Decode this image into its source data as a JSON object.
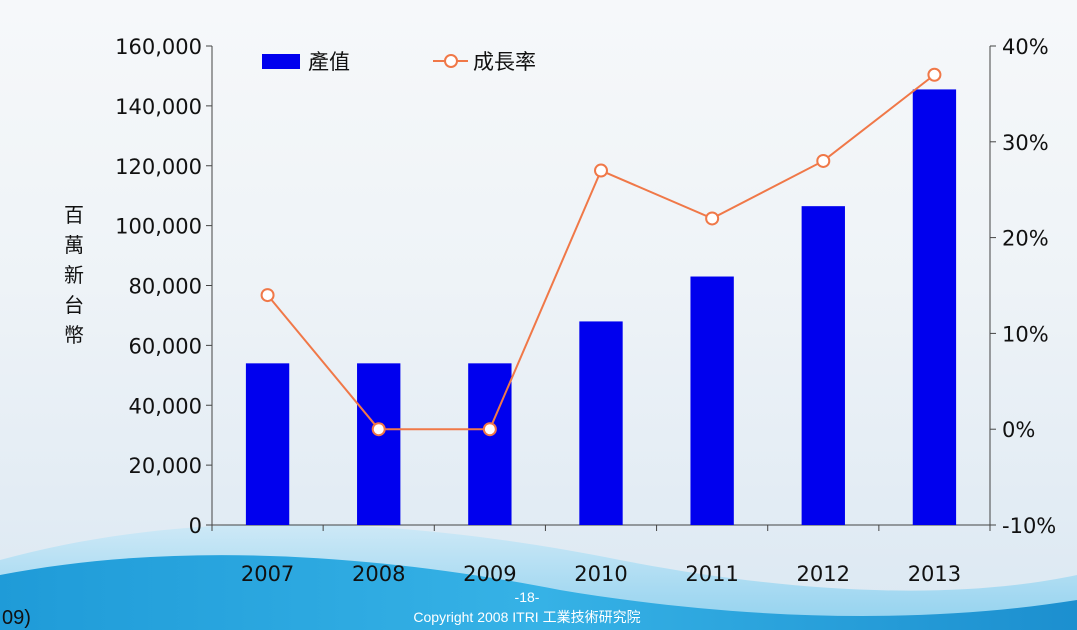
{
  "chart_data": {
    "type": "bar",
    "categories": [
      "2007",
      "2008",
      "2009",
      "2010",
      "2011",
      "2012",
      "2013"
    ],
    "series": [
      {
        "name": "產值",
        "type": "bar",
        "axis": "left",
        "color": "#0000ee",
        "values": [
          54000,
          54000,
          54000,
          68000,
          83000,
          106500,
          145500
        ]
      },
      {
        "name": "成長率",
        "type": "line",
        "axis": "right",
        "color": "#f07848",
        "marker": "open-circle",
        "values": [
          14,
          0,
          0,
          27,
          22,
          28,
          37
        ]
      }
    ],
    "ylabel": "百萬新台幣",
    "ylim": [
      0,
      160000
    ],
    "y_ticks": [
      "0",
      "20,000",
      "40,000",
      "60,000",
      "80,000",
      "100,000",
      "120,000",
      "140,000",
      "160,000"
    ],
    "y2lim": [
      -10,
      40
    ],
    "y2_ticks": [
      "-10%",
      "0%",
      "10%",
      "20%",
      "30%",
      "40%"
    ],
    "legend_position": "top-left",
    "grid": false
  },
  "footer": {
    "page_number": "-18-",
    "copyright": "Copyright 2008 ITRI 工業技術研究院",
    "left_fragment": "09)"
  },
  "colors": {
    "bar": "#0000ee",
    "line": "#f07848",
    "footer_wave": "#2aa6dd"
  }
}
